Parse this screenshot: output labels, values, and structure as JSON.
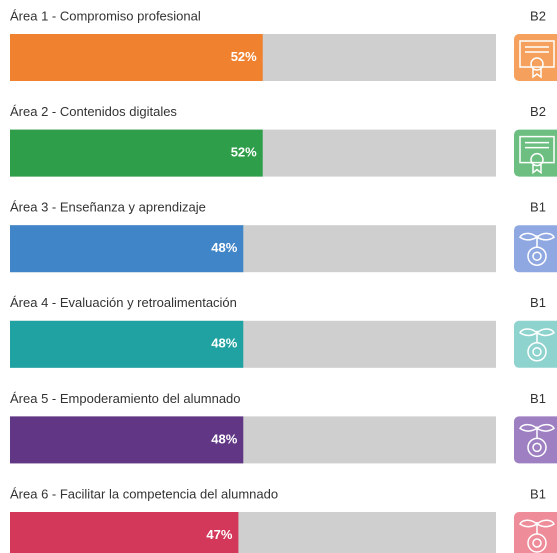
{
  "areas": [
    {
      "label": "Área 1 - Compromiso profesional",
      "value": 52,
      "value_label": "52%",
      "level": "B2",
      "color": "#f0812e",
      "icon_color": "#f5a05c"
    },
    {
      "label": "Área 2 - Contenidos digitales",
      "value": 52,
      "value_label": "52%",
      "level": "B2",
      "color": "#2f9e4b",
      "icon_color": "#6cbf80"
    },
    {
      "label": "Área 3 - Enseñanza y aprendizaje",
      "value": 48,
      "value_label": "48%",
      "level": "B1",
      "color": "#3f85c8",
      "icon_color": "#8fa8e2"
    },
    {
      "label": "Área 4 - Evaluación y retroalimentación",
      "value": 48,
      "value_label": "48%",
      "level": "B1",
      "color": "#20a2a2",
      "icon_color": "#8fd3cf"
    },
    {
      "label": "Área 5 - Empoderamiento del alumnado",
      "value": 48,
      "value_label": "48%",
      "level": "B1",
      "color": "#603685",
      "icon_color": "#9d7fc2"
    },
    {
      "label": "Área 6 - Facilitar la competencia del alumnado",
      "value": 47,
      "value_label": "47%",
      "level": "B1",
      "color": "#d3385b",
      "icon_color": "#ee8c9a"
    }
  ]
}
